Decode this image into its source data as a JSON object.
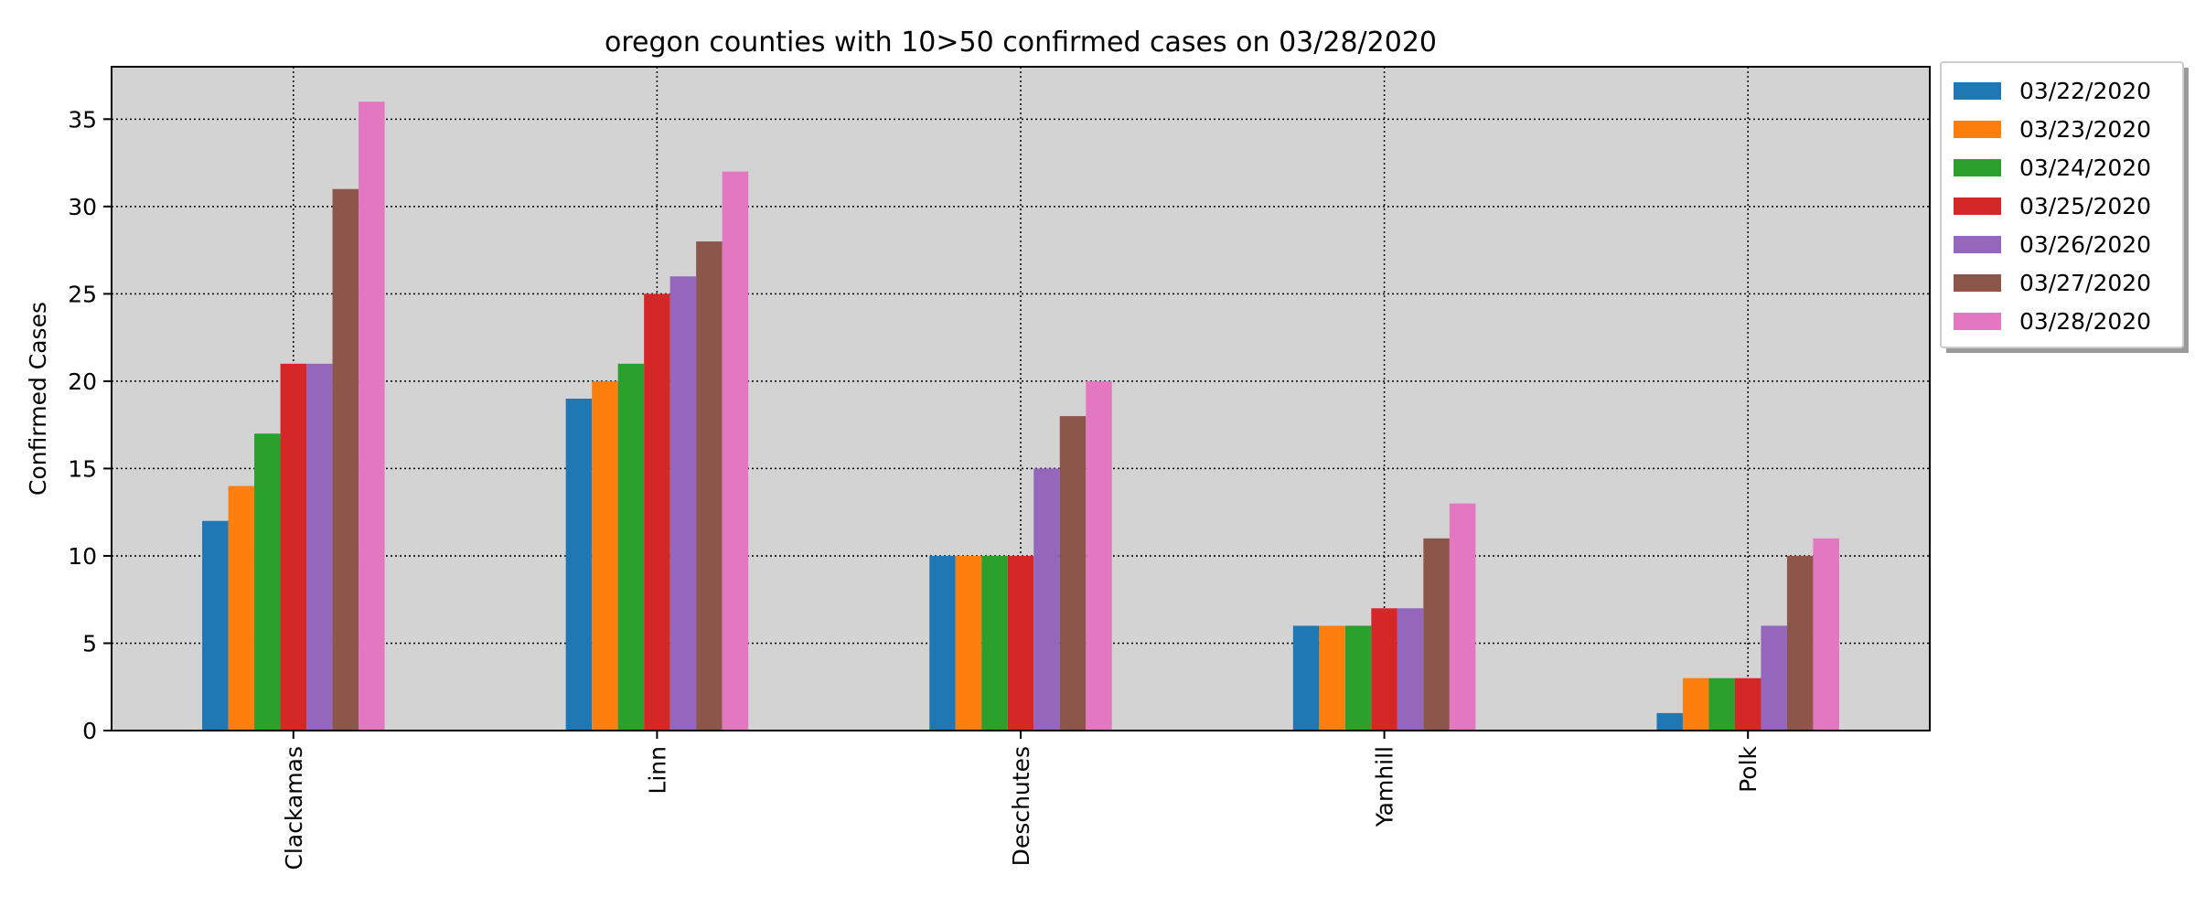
{
  "chart_data": {
    "type": "bar",
    "title": "oregon counties with 10>50 confirmed cases on 03/28/2020",
    "xlabel": "",
    "ylabel": "Confirmed Cases",
    "categories": [
      "Clackamas",
      "Linn",
      "Deschutes",
      "Yamhill",
      "Polk"
    ],
    "ylim": [
      0,
      38
    ],
    "yticks": [
      0,
      5,
      10,
      15,
      20,
      25,
      30,
      35
    ],
    "grid": true,
    "legend_position": "outside-top-right",
    "plot_background": "#d3d3d3",
    "series": [
      {
        "name": "03/22/2020",
        "color": "#1f77b4",
        "values": [
          12,
          19,
          10,
          6,
          1
        ]
      },
      {
        "name": "03/23/2020",
        "color": "#ff7f0e",
        "values": [
          14,
          20,
          10,
          6,
          3
        ]
      },
      {
        "name": "03/24/2020",
        "color": "#2ca02c",
        "values": [
          17,
          21,
          10,
          6,
          3
        ]
      },
      {
        "name": "03/25/2020",
        "color": "#d62728",
        "values": [
          21,
          25,
          10,
          7,
          3
        ]
      },
      {
        "name": "03/26/2020",
        "color": "#9467bd",
        "values": [
          21,
          26,
          15,
          7,
          6
        ]
      },
      {
        "name": "03/27/2020",
        "color": "#8c564b",
        "values": [
          31,
          28,
          18,
          11,
          10
        ]
      },
      {
        "name": "03/28/2020",
        "color": "#e377c2",
        "values": [
          36,
          32,
          20,
          13,
          11
        ]
      }
    ]
  }
}
